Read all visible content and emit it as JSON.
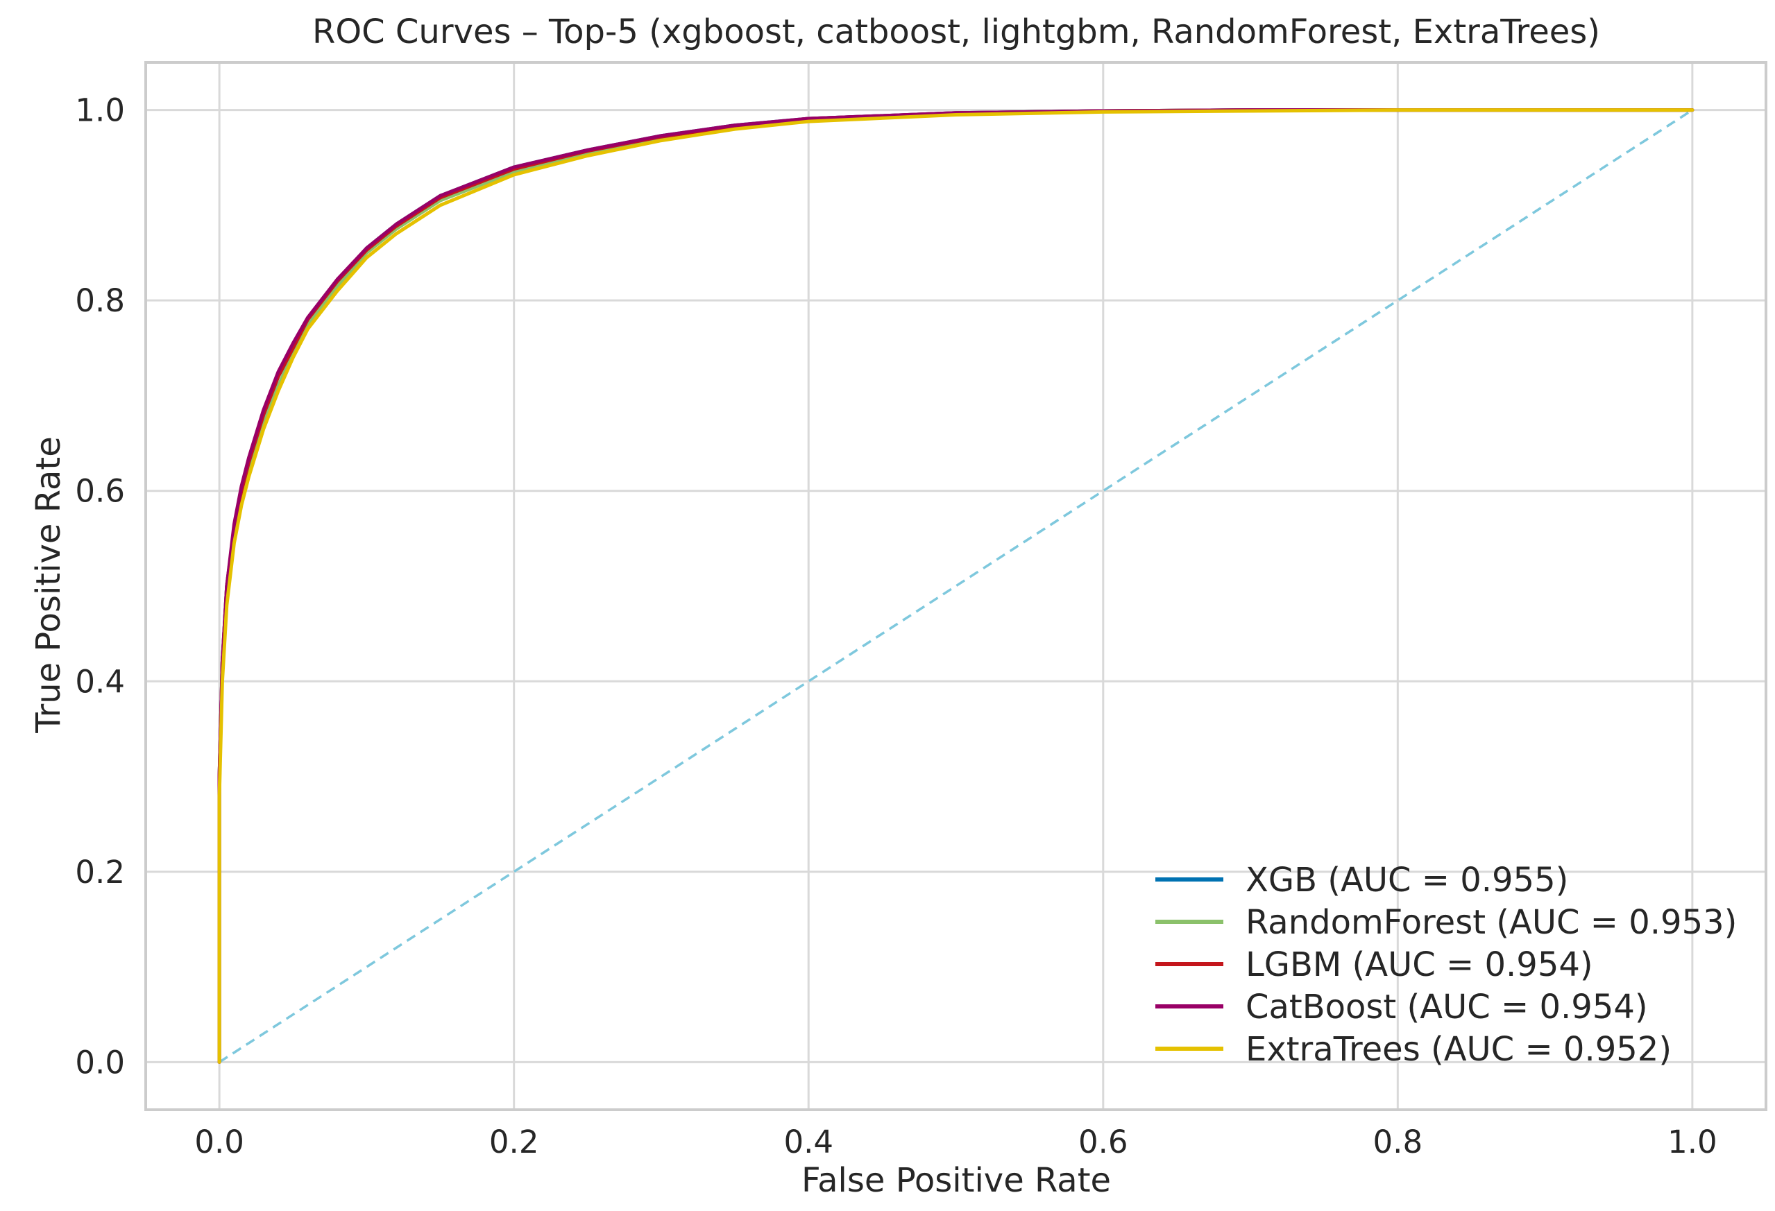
{
  "chart_data": {
    "type": "line",
    "title": "ROC Curves – Top-5 (xgboost, catboost, lightgbm, RandomForest, ExtraTrees)",
    "xlabel": "False Positive Rate",
    "ylabel": "True Positive Rate",
    "xlim": [
      -0.05,
      1.05
    ],
    "ylim": [
      -0.05,
      1.05
    ],
    "xticks": [
      0.0,
      0.2,
      0.4,
      0.6,
      0.8,
      1.0
    ],
    "yticks": [
      0.0,
      0.2,
      0.4,
      0.6,
      0.8,
      1.0
    ],
    "xtick_labels": [
      "0.0",
      "0.2",
      "0.4",
      "0.6",
      "0.8",
      "1.0"
    ],
    "ytick_labels": [
      "0.0",
      "0.2",
      "0.4",
      "0.6",
      "0.8",
      "1.0"
    ],
    "grid": true,
    "legend_position": "lower-right",
    "series": [
      {
        "name": "XGB (AUC = 0.955)",
        "color": "#0072B2",
        "x": [
          0.0,
          0.0,
          0.002,
          0.005,
          0.01,
          0.015,
          0.02,
          0.03,
          0.04,
          0.05,
          0.06,
          0.08,
          0.1,
          0.12,
          0.15,
          0.2,
          0.25,
          0.3,
          0.35,
          0.4,
          0.5,
          0.6,
          0.7,
          0.8,
          0.9,
          1.0
        ],
        "y": [
          0.0,
          0.3,
          0.42,
          0.5,
          0.56,
          0.6,
          0.63,
          0.68,
          0.72,
          0.75,
          0.78,
          0.82,
          0.855,
          0.88,
          0.91,
          0.94,
          0.958,
          0.973,
          0.984,
          0.991,
          0.997,
          0.999,
          1.0,
          1.0,
          1.0,
          1.0
        ]
      },
      {
        "name": "RandomForest (AUC = 0.953)",
        "color": "#8BC16B",
        "x": [
          0.0,
          0.0,
          0.002,
          0.005,
          0.01,
          0.015,
          0.02,
          0.03,
          0.04,
          0.05,
          0.06,
          0.08,
          0.1,
          0.12,
          0.15,
          0.2,
          0.25,
          0.3,
          0.35,
          0.4,
          0.5,
          0.6,
          0.7,
          0.8,
          0.9,
          1.0
        ],
        "y": [
          0.0,
          0.29,
          0.41,
          0.49,
          0.55,
          0.59,
          0.62,
          0.67,
          0.71,
          0.745,
          0.775,
          0.815,
          0.85,
          0.875,
          0.905,
          0.935,
          0.954,
          0.97,
          0.982,
          0.99,
          0.996,
          0.999,
          1.0,
          1.0,
          1.0,
          1.0
        ]
      },
      {
        "name": "LGBM (AUC = 0.954)",
        "color": "#C4161C",
        "x": [
          0.0,
          0.0,
          0.002,
          0.005,
          0.01,
          0.015,
          0.02,
          0.03,
          0.04,
          0.05,
          0.06,
          0.08,
          0.1,
          0.12,
          0.15,
          0.2,
          0.25,
          0.3,
          0.35,
          0.4,
          0.5,
          0.6,
          0.7,
          0.8,
          0.9,
          1.0
        ],
        "y": [
          0.0,
          0.3,
          0.42,
          0.5,
          0.56,
          0.6,
          0.63,
          0.68,
          0.72,
          0.75,
          0.78,
          0.82,
          0.853,
          0.878,
          0.908,
          0.938,
          0.957,
          0.972,
          0.983,
          0.991,
          0.997,
          0.999,
          1.0,
          1.0,
          1.0,
          1.0
        ]
      },
      {
        "name": "CatBoost (AUC = 0.954)",
        "color": "#990066",
        "x": [
          0.0,
          0.0,
          0.002,
          0.005,
          0.01,
          0.015,
          0.02,
          0.03,
          0.04,
          0.05,
          0.06,
          0.08,
          0.1,
          0.12,
          0.15,
          0.2,
          0.25,
          0.3,
          0.35,
          0.4,
          0.5,
          0.6,
          0.7,
          0.8,
          0.9,
          1.0
        ],
        "y": [
          0.0,
          0.3,
          0.42,
          0.5,
          0.565,
          0.605,
          0.635,
          0.685,
          0.725,
          0.755,
          0.782,
          0.822,
          0.855,
          0.88,
          0.91,
          0.94,
          0.958,
          0.973,
          0.984,
          0.991,
          0.997,
          0.999,
          1.0,
          1.0,
          1.0,
          1.0
        ]
      },
      {
        "name": "ExtraTrees (AUC = 0.952)",
        "color": "#E5C100",
        "x": [
          0.0,
          0.0,
          0.002,
          0.005,
          0.01,
          0.015,
          0.02,
          0.03,
          0.04,
          0.05,
          0.06,
          0.08,
          0.1,
          0.12,
          0.15,
          0.2,
          0.25,
          0.3,
          0.35,
          0.4,
          0.5,
          0.6,
          0.7,
          0.8,
          0.9,
          1.0
        ],
        "y": [
          0.0,
          0.28,
          0.4,
          0.48,
          0.545,
          0.585,
          0.615,
          0.665,
          0.705,
          0.74,
          0.77,
          0.81,
          0.845,
          0.87,
          0.9,
          0.932,
          0.952,
          0.968,
          0.98,
          0.988,
          0.995,
          0.998,
          0.999,
          1.0,
          1.0,
          1.0
        ]
      }
    ],
    "reference_line": {
      "x": [
        0.0,
        1.0
      ],
      "y": [
        0.0,
        1.0
      ],
      "color": "#7EC8DD",
      "style": "dashed"
    },
    "colors": {
      "background": "#FFFFFF",
      "grid": "#D9D9D9",
      "axes_border": "#CCCCCC",
      "text": "#262626"
    }
  }
}
